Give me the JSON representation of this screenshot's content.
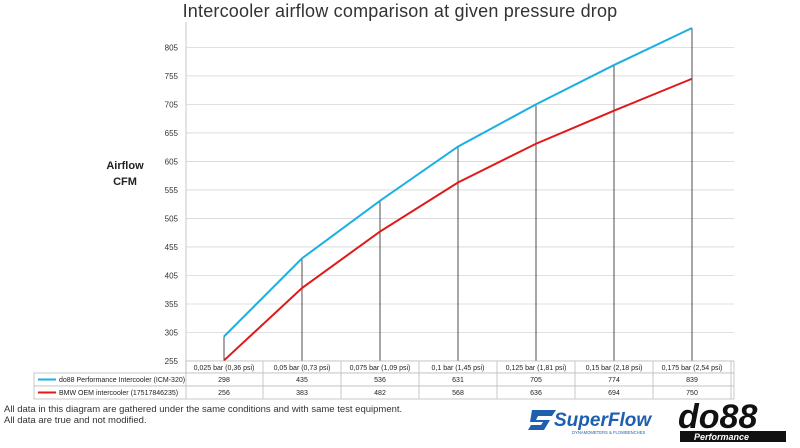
{
  "title": "Intercooler airflow comparison at given pressure drop",
  "chart_data": {
    "type": "line",
    "title": "Intercooler airflow comparison at given pressure drop",
    "ylabel": [
      "Airflow",
      "CFM"
    ],
    "xlabel": "",
    "ylim": [
      255,
      839
    ],
    "yticks": [
      255,
      305,
      355,
      405,
      455,
      505,
      555,
      605,
      655,
      705,
      755,
      805
    ],
    "categories": [
      "0,025 bar (0,36 psi)",
      "0,05 bar (0,73 psi)",
      "0,075 bar (1,09 psi)",
      "0,1 bar (1,45 psi)",
      "0,125 bar (1,81 psi)",
      "0,15 bar (2,18 psi)",
      "0,175 bar (2,54 psi)"
    ],
    "series": [
      {
        "name": "do88 Performance Intercooler (ICM-320)",
        "color": "#1ab0e0",
        "values": [
          "298",
          "435",
          "536",
          "631",
          "705",
          "774",
          "839"
        ]
      },
      {
        "name": "BMW OEM intercooler (17517846235)",
        "color": "#e01a1a",
        "values": [
          "256",
          "383",
          "482",
          "568",
          "636",
          "694",
          "750"
        ]
      }
    ],
    "grid": true,
    "legend": "table-below"
  },
  "footer": {
    "line1": "All data in this diagram are gathered under the same conditions and with same test equipment.",
    "line2": "All data are true and not modified."
  },
  "logos": {
    "superflow": "SuperFlow",
    "superflow_tagline": "DYNAMOMETERS & FLOWBENCHES",
    "do88": "do88",
    "do88_sub": "Performance"
  }
}
